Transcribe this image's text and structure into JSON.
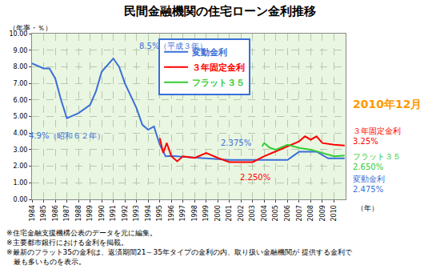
{
  "chart_data": {
    "type": "line",
    "title": "民間金融機関の住宅ローン金利推移",
    "ylabel": "（年率・％）",
    "xlabel": "（年）",
    "xlim": [
      1984,
      2011
    ],
    "xticks": [
      1984,
      1985,
      1986,
      1987,
      1988,
      1989,
      1990,
      1991,
      1992,
      1993,
      1994,
      1995,
      1996,
      1997,
      1998,
      1999,
      2000,
      2001,
      2002,
      2003,
      2004,
      2005,
      2006,
      2007,
      2008,
      2009,
      2010
    ],
    "ylim": [
      0,
      10
    ],
    "yticks": [
      {
        "value": 0,
        "label": "0.00"
      },
      {
        "value": 1,
        "label": "1.00"
      },
      {
        "value": 2,
        "label": "2.00"
      },
      {
        "value": 3,
        "label": "3.00"
      },
      {
        "value": 4,
        "label": "4.00"
      },
      {
        "value": 5,
        "label": "5.00"
      },
      {
        "value": 6,
        "label": "6.00"
      },
      {
        "value": 7,
        "label": "7.00"
      },
      {
        "value": 8,
        "label": "8.00"
      },
      {
        "value": 9,
        "label": "9.00"
      },
      {
        "value": 10,
        "label": "10.00"
      }
    ],
    "grid": true,
    "legend": "top",
    "series": [
      {
        "name": "変動金利",
        "color": "#3a6fd8",
        "x": [
          1984,
          1985,
          1985.5,
          1986,
          1986.5,
          1987,
          1988,
          1989,
          1989.5,
          1990,
          1991,
          1991.5,
          1992,
          1993,
          1993.5,
          1994,
          1994.5,
          1995,
          1995.5,
          1996,
          2001,
          2006,
          2006.5,
          2007,
          2008.5,
          2009,
          2009.5,
          2010.92
        ],
        "values": [
          8.2,
          7.9,
          7.9,
          7.3,
          6.0,
          4.9,
          5.2,
          5.7,
          6.5,
          7.7,
          8.5,
          8.0,
          7.0,
          5.5,
          4.5,
          4.2,
          4.4,
          3.3,
          2.6,
          2.625,
          2.375,
          2.375,
          2.625,
          2.875,
          2.875,
          2.675,
          2.475,
          2.475
        ]
      },
      {
        "name": "３年固定金利",
        "color": "#ff0000",
        "x": [
          1995,
          1995.3,
          1995.6,
          1996,
          1996.5,
          1997,
          1998,
          1999,
          2000,
          2001,
          2003,
          2004,
          2005,
          2006,
          2007,
          2007.5,
          2008,
          2008.5,
          2009,
          2010,
          2010.92
        ],
        "values": [
          3.7,
          2.8,
          3.4,
          2.6,
          2.3,
          2.6,
          2.5,
          2.8,
          2.5,
          2.25,
          2.25,
          2.6,
          2.9,
          3.2,
          3.5,
          3.8,
          3.6,
          3.8,
          3.4,
          3.3,
          3.25
        ]
      },
      {
        "name": "フラット３５",
        "color": "#33cc33",
        "x": [
          2003.8,
          2004,
          2004.5,
          2005,
          2006,
          2007,
          2008,
          2008.5,
          2009,
          2010,
          2010.92
        ],
        "values": [
          3.2,
          3.4,
          3.1,
          3.0,
          3.3,
          3.1,
          3.0,
          2.9,
          2.8,
          2.6,
          2.65
        ]
      }
    ],
    "annotations": [
      {
        "text": "8.5%（平成３年）",
        "x": 1991,
        "y": 8.5,
        "color": "#3a6fd8"
      },
      {
        "text": "4.9%（昭和６２年）",
        "x": 1987,
        "y": 4.9,
        "color": "#3a6fd8"
      },
      {
        "text": "2.375%",
        "x": 2001,
        "y": 2.375,
        "color": "#3a6fd8"
      },
      {
        "text": "2.250%",
        "x": 2002,
        "y": 2.25,
        "color": "#ff0000"
      },
      {
        "text": "2010年12月",
        "x": 2010.92,
        "y": 3.25,
        "color": "#ff9900"
      },
      {
        "text": "３年固定金利\n3.25%",
        "x": 2010.92,
        "y": 3.25,
        "color": "#ff0000"
      },
      {
        "text": "フラット３５\n2.650%",
        "x": 2010.92,
        "y": 2.65,
        "color": "#33cc33"
      },
      {
        "text": "変動金利\n2.475%",
        "x": 2010.92,
        "y": 2.475,
        "color": "#3a6fd8"
      }
    ]
  },
  "notes": [
    "※住宅金融支援機構公表のデータを元に編集。",
    "※主要都市銀行における金利を掲載。",
    "※最新のフラット35の金利は、返済期間21～35年タイプの金利の内、取り扱い金融機関が 提供する金利で\n　最も多いものを表示。"
  ]
}
